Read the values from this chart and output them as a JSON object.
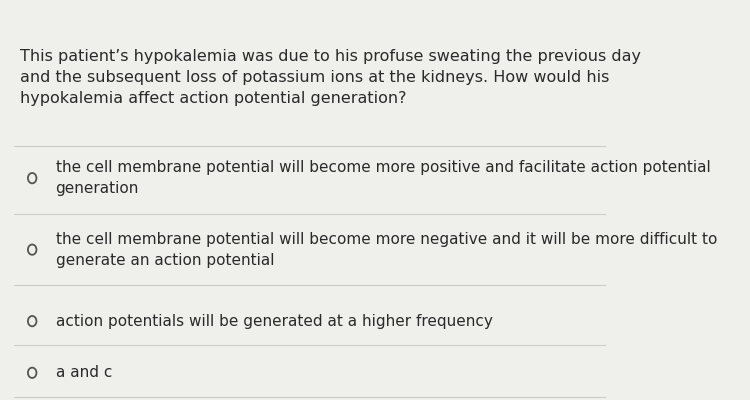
{
  "background_color": "#efefec",
  "question_text": "This patient’s hypokalemia was due to his profuse sweating the previous day\nand the subsequent loss of potassium ions at the kidneys. How would his\nhypokalemia affect action potential generation?",
  "options": [
    "the cell membrane potential will become more positive and facilitate action potential\ngeneration",
    "the cell membrane potential will become more negative and it will be more difficult to\ngenerate an action potential",
    "action potentials will be generated at a higher frequency",
    "a and c"
  ],
  "text_color": "#2a2a2a",
  "line_color": "#cccccc",
  "font_size_question": 11.5,
  "font_size_option": 11.0,
  "circle_color": "#555555"
}
